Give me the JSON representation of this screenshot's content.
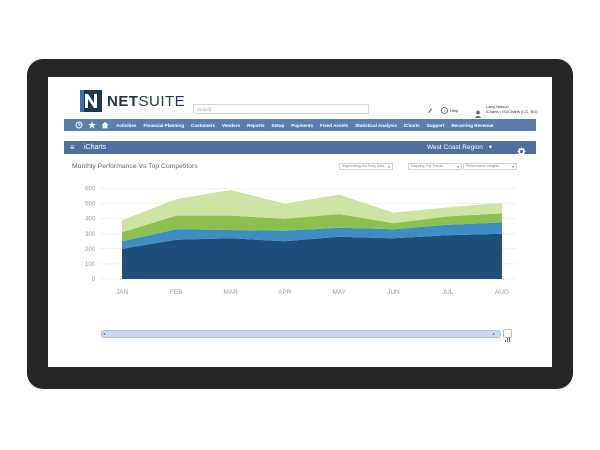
{
  "brand": {
    "name_bold": "NET",
    "name_light": "SUITE",
    "color": "#1f3650"
  },
  "search": {
    "placeholder": "Search"
  },
  "header": {
    "help_label": "Help",
    "user_name": "Larry Nelson",
    "user_role": "iCharts • iSoCharts (CO, BG)"
  },
  "nav": {
    "icons": [
      "recent-icon",
      "star-icon",
      "home-icon"
    ],
    "items": [
      "Activities",
      "Financial Planning",
      "Customers",
      "Vendors",
      "Reports",
      "Setup",
      "Payments",
      "Fixed Assets",
      "Statistical Analysis",
      "iCharts",
      "Support",
      "Recurring Revenue"
    ],
    "color": "#5a7fad"
  },
  "page": {
    "title": "iCharts",
    "region_label": "West Coast Region",
    "menu_glyph": "≡",
    "caret_glyph": "▾",
    "bar_color": "#4f6fa0"
  },
  "chart": {
    "title": "Monthly Performance Vs Top Competitors",
    "dropdowns": [
      "Segmenting 3rd Party Data",
      "Mapping The Trends",
      "Performance Insights"
    ]
  },
  "chart_data": {
    "type": "area",
    "stacked": true,
    "categories": [
      "JAN",
      "FEB",
      "MAR",
      "APR",
      "MAY",
      "JUN",
      "JUL",
      "AUG"
    ],
    "ylim": [
      0,
      650
    ],
    "yticks": [
      0,
      100,
      200,
      300,
      400,
      500,
      600
    ],
    "grid": true,
    "series": [
      {
        "color": "#1f4e79",
        "values": [
          200,
          260,
          270,
          250,
          280,
          270,
          290,
          300
        ]
      },
      {
        "color": "#3d8ec2",
        "values": [
          50,
          70,
          55,
          70,
          60,
          60,
          70,
          75
        ]
      },
      {
        "color": "#8cc04f",
        "values": [
          60,
          90,
          95,
          80,
          90,
          40,
          55,
          60
        ]
      },
      {
        "color": "#cfe3a4",
        "values": [
          80,
          110,
          170,
          100,
          130,
          70,
          60,
          70
        ]
      }
    ]
  }
}
